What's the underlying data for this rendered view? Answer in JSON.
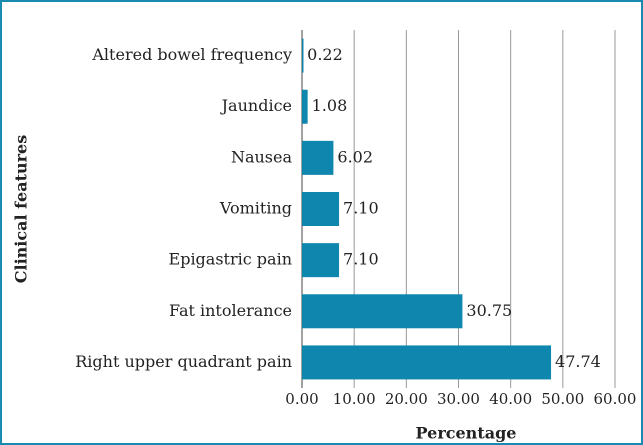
{
  "chart_data": {
    "type": "bar",
    "orientation": "horizontal",
    "x_label": "Percentage",
    "y_label": "Clinical features",
    "categories": [
      "Altered bowel frequency",
      "Jaundice",
      "Nausea",
      "Vomiting",
      "Epigastric pain",
      "Fat intolerance",
      "Right upper quadrant pain"
    ],
    "values": [
      0.22,
      1.08,
      6.02,
      7.1,
      7.1,
      30.75,
      47.74
    ],
    "value_labels": [
      "0.22",
      "1.08",
      "6.02",
      "7.10",
      "7.10",
      "30.75",
      "47.74"
    ],
    "color": "#0f86ae",
    "xlim": [
      0,
      60
    ],
    "xticks": [
      {
        "value": 0,
        "label": "0.00"
      },
      {
        "value": 10,
        "label": "10.00"
      },
      {
        "value": 20,
        "label": "20.00"
      },
      {
        "value": 30,
        "label": "30.00"
      },
      {
        "value": 40,
        "label": "40.00"
      },
      {
        "value": 50,
        "label": "50.00"
      },
      {
        "value": 60,
        "label": "60.00"
      }
    ],
    "grid": true
  }
}
